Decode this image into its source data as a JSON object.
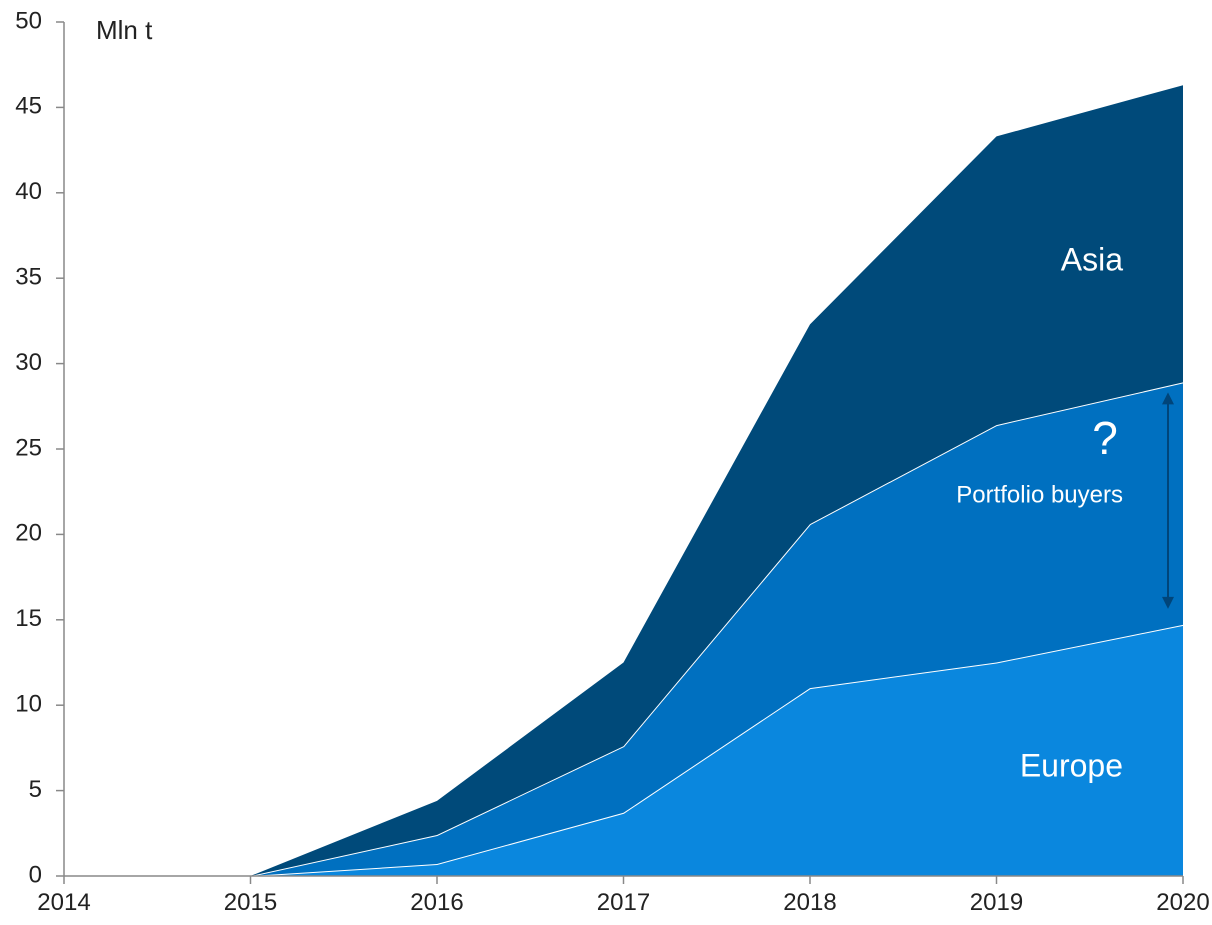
{
  "chart_data": {
    "type": "area",
    "stacked": true,
    "y_label": "Mln t",
    "x": [
      2015,
      2016,
      2017,
      2018,
      2019,
      2020
    ],
    "series": [
      {
        "name": "Europe",
        "color": "#0a87de",
        "values": [
          0,
          0.7,
          3.7,
          11.0,
          12.5,
          14.7
        ]
      },
      {
        "name": "Portfolio buyers",
        "color": "#0070c0",
        "values": [
          0,
          1.7,
          3.9,
          9.6,
          13.9,
          14.2
        ]
      },
      {
        "name": "Asia",
        "color": "#004a7a",
        "values": [
          0,
          2.0,
          4.9,
          11.7,
          16.9,
          17.4
        ]
      }
    ],
    "annotation": "?",
    "xlim": [
      2014,
      2020
    ],
    "xticks": [
      2014,
      2015,
      2016,
      2017,
      2018,
      2019,
      2020
    ],
    "ylim": [
      0,
      50
    ],
    "yticks": [
      0,
      5,
      10,
      15,
      20,
      25,
      30,
      35,
      40,
      45,
      50
    ]
  }
}
